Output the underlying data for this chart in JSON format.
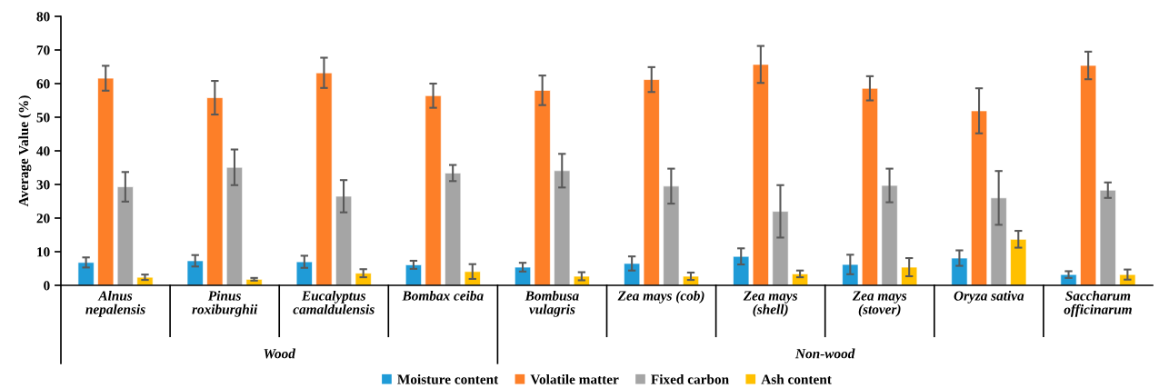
{
  "chart_data": {
    "type": "bar",
    "ylabel": "Average Value (%)",
    "categories": [
      "Alnus\nnepalensis",
      "Pinus\nroxiburghii",
      "Eucalyptus\ncamaldulensis",
      "Bombax ceiba",
      "Bombusa\nvulagris",
      "Zea mays (cob)",
      "Zea mays\n(shell)",
      "Zea mays\n(stover)",
      "Oryza sativa",
      "Saccharum\nofficinarum"
    ],
    "series": [
      {
        "name": "Moisture content",
        "color": "#1f9bd7",
        "values": [
          6.8,
          7.3,
          7.0,
          6.1,
          5.4,
          6.5,
          8.6,
          6.2,
          8.1,
          3.2
        ],
        "errors": [
          1.5,
          1.7,
          1.8,
          1.2,
          1.3,
          2.1,
          2.4,
          2.9,
          2.3,
          1.0
        ]
      },
      {
        "name": "Volatile matter",
        "color": "#fd7f28",
        "values": [
          61.6,
          55.8,
          63.2,
          56.4,
          58.0,
          61.2,
          65.7,
          58.6,
          51.9,
          65.4
        ],
        "errors": [
          3.7,
          5.0,
          4.5,
          3.6,
          4.4,
          3.7,
          5.5,
          3.6,
          6.7,
          4.1
        ]
      },
      {
        "name": "Fixed carbon",
        "color": "#a5a5a5",
        "values": [
          29.3,
          35.1,
          26.5,
          33.4,
          34.1,
          29.5,
          22.0,
          29.7,
          26.0,
          28.3
        ],
        "errors": [
          4.4,
          5.3,
          4.8,
          2.4,
          5.0,
          5.2,
          7.8,
          5.0,
          8.0,
          2.3
        ]
      },
      {
        "name": "Ash content",
        "color": "#ffc000",
        "values": [
          2.4,
          1.8,
          3.6,
          4.1,
          2.7,
          2.7,
          3.4,
          5.4,
          13.7,
          3.2
        ],
        "errors": [
          0.8,
          0.4,
          1.2,
          2.2,
          1.2,
          1.1,
          1.0,
          2.7,
          2.5,
          1.5
        ]
      }
    ],
    "annotations": [
      "Wood",
      "Non-wood"
    ],
    "ylim": [
      0,
      80
    ],
    "yticks": [
      0,
      10,
      20,
      30,
      40,
      50,
      60,
      70,
      80
    ],
    "grid": false,
    "legend": "bottom"
  }
}
